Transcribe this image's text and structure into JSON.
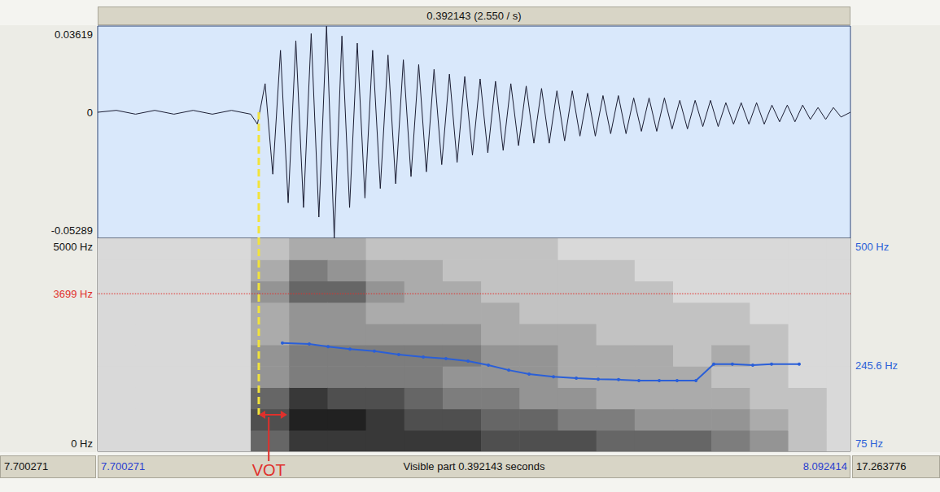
{
  "header": "0.392143 (2.550 / s)",
  "footer": {
    "left_outer": "7.700271",
    "left": "7.700271",
    "center": "Visible part 0.392143 seconds",
    "right": "8.092414",
    "right_outer": "17.263776"
  },
  "chart_data": [
    {
      "type": "line",
      "xlim": [
        7.700271,
        8.092414
      ],
      "ylim": [
        -0.05289,
        0.03619
      ],
      "yticks": [
        -0.05289,
        0,
        0.03619
      ],
      "grid": false,
      "color": "#1b1d33",
      "x": [
        7.700271,
        7.71,
        7.72,
        7.73,
        7.74,
        7.75,
        7.76,
        7.77,
        7.78,
        7.7835,
        7.7875,
        7.7915,
        7.7955,
        7.7995,
        7.8035,
        7.8075,
        7.8115,
        7.8155,
        7.8195,
        7.8235,
        7.8275,
        7.8315,
        7.8355,
        7.8395,
        7.8435,
        7.8475,
        7.8515,
        7.8555,
        7.8595,
        7.8635,
        7.8675,
        7.8715,
        7.8755,
        7.8795,
        7.8835,
        7.8875,
        7.8915,
        7.8955,
        7.8995,
        7.9035,
        7.9075,
        7.9115,
        7.9155,
        7.9195,
        7.9235,
        7.9275,
        7.9315,
        7.9355,
        7.9395,
        7.9435,
        7.9475,
        7.9515,
        7.9555,
        7.9595,
        7.9635,
        7.9675,
        7.9715,
        7.9755,
        7.9795,
        7.9835,
        7.9875,
        7.9915,
        7.9955,
        7.9995,
        8.0035,
        8.0075,
        8.0115,
        8.0155,
        8.0195,
        8.0235,
        8.0275,
        8.0315,
        8.0355,
        8.0395,
        8.0435,
        8.0475,
        8.0515,
        8.0555,
        8.0595,
        8.0635,
        8.0675,
        8.0715,
        8.0755,
        8.0795,
        8.0835,
        8.0875,
        8.0924
      ],
      "values": [
        0,
        0.0008,
        -0.0008,
        0.0008,
        -0.0008,
        0.0008,
        -0.0008,
        0.0008,
        -0.0008,
        -0.005,
        0.012,
        -0.026,
        0.026,
        -0.038,
        0.03,
        -0.04,
        0.033,
        -0.044,
        0.0361,
        -0.0528,
        0.032,
        -0.04,
        0.029,
        -0.036,
        0.026,
        -0.032,
        0.024,
        -0.03,
        0.022,
        -0.027,
        0.02,
        -0.025,
        0.018,
        -0.022,
        0.016,
        -0.021,
        0.015,
        -0.018,
        0.014,
        -0.017,
        0.013,
        -0.016,
        0.012,
        -0.014,
        0.011,
        -0.013,
        0.01,
        -0.013,
        0.009,
        -0.012,
        0.009,
        -0.01,
        0.008,
        -0.01,
        0.007,
        -0.009,
        0.007,
        -0.009,
        0.006,
        -0.008,
        0.006,
        -0.008,
        0.006,
        -0.007,
        0.005,
        -0.007,
        0.005,
        -0.006,
        0.005,
        -0.006,
        0.004,
        -0.005,
        0.004,
        -0.005,
        0.004,
        -0.005,
        0.003,
        -0.004,
        0.003,
        -0.004,
        0.003,
        -0.003,
        0.002,
        -0.003,
        0.002,
        -0.002,
        0
      ]
    },
    {
      "type": "heatmap",
      "xlim": [
        7.700271,
        8.092414
      ],
      "ylim": [
        0,
        5000
      ],
      "yticks": [
        {
          "value": 0,
          "label": "0 Hz"
        },
        {
          "value": 5000,
          "label": "5000 Hz"
        }
      ],
      "y2lim": [
        75,
        500
      ],
      "y2ticks": [
        {
          "value": 75,
          "label": "75 Hz"
        },
        {
          "value": 245.6,
          "label": "245.6 Hz"
        },
        {
          "value": 500,
          "label": "500 Hz"
        }
      ],
      "grid": false,
      "time_edges": [
        7.700271,
        7.72,
        7.74,
        7.76,
        7.78,
        7.8,
        7.82,
        7.84,
        7.86,
        7.88,
        7.9,
        7.92,
        7.94,
        7.96,
        7.98,
        8.0,
        8.02,
        8.04,
        8.06,
        8.08,
        8.092414
      ],
      "freq_edges": [
        0,
        500,
        1000,
        1500,
        2000,
        2500,
        3000,
        3500,
        4000,
        4500,
        5000
      ],
      "intensity_range": [
        0,
        10
      ],
      "intensity": [
        [
          1,
          1,
          1,
          1,
          1,
          1,
          1,
          1,
          1,
          1
        ],
        [
          1,
          1,
          1,
          1,
          1,
          1,
          1,
          1,
          1,
          1
        ],
        [
          1,
          1,
          1,
          1,
          1,
          1,
          1,
          1,
          1,
          1
        ],
        [
          1,
          1,
          1,
          1,
          1,
          1,
          1,
          1,
          1,
          1
        ],
        [
          6,
          7,
          6,
          4,
          4,
          3,
          3,
          4,
          3,
          2
        ],
        [
          8,
          9,
          8,
          5,
          5,
          4,
          4,
          6,
          5,
          3
        ],
        [
          8,
          9,
          7,
          5,
          5,
          4,
          4,
          6,
          4,
          3
        ],
        [
          8,
          8,
          7,
          5,
          5,
          4,
          3,
          4,
          3,
          2
        ],
        [
          8,
          7,
          6,
          5,
          5,
          4,
          3,
          3,
          3,
          2
        ],
        [
          8,
          7,
          5,
          4,
          5,
          4,
          3,
          3,
          2,
          2
        ],
        [
          7,
          6,
          5,
          4,
          4,
          3,
          3,
          2,
          2,
          2
        ],
        [
          7,
          6,
          4,
          4,
          4,
          3,
          2,
          2,
          2,
          2
        ],
        [
          7,
          5,
          4,
          3,
          3,
          3,
          2,
          2,
          2,
          1
        ],
        [
          6,
          5,
          3,
          3,
          3,
          2,
          2,
          2,
          2,
          1
        ],
        [
          6,
          4,
          3,
          3,
          3,
          2,
          2,
          2,
          1,
          1
        ],
        [
          6,
          4,
          3,
          3,
          2,
          2,
          2,
          1,
          1,
          1
        ],
        [
          5,
          4,
          3,
          2,
          3,
          2,
          2,
          1,
          1,
          1
        ],
        [
          4,
          3,
          2,
          2,
          2,
          2,
          1,
          1,
          1,
          1
        ],
        [
          2,
          2,
          2,
          1,
          1,
          1,
          1,
          1,
          1,
          1
        ],
        [
          1,
          1,
          1,
          1,
          1,
          1,
          1,
          1,
          1,
          1
        ]
      ],
      "series": [
        {
          "type": "line",
          "axis": "y2",
          "color": "#2a5fd8",
          "marker": "circle",
          "x": [
            7.7965,
            7.8105,
            7.8203,
            7.8317,
            7.8444,
            7.8571,
            7.8699,
            7.8817,
            7.8932,
            7.9038,
            7.9144,
            7.925,
            7.9377,
            7.9496,
            7.961,
            7.9716,
            7.9822,
            7.9928,
            8.0021,
            8.0119,
            8.0212,
            8.0309,
            8.0415,
            8.0513,
            8.0657
          ],
          "values": [
            291,
            289,
            284,
            279,
            275,
            268,
            263,
            260,
            255,
            247,
            237,
            229,
            224,
            221,
            219,
            218,
            216,
            216,
            216,
            216,
            249,
            249,
            247,
            249,
            249
          ]
        }
      ],
      "annotations": [
        {
          "type": "hline",
          "value": 3699,
          "label": "3699 Hz",
          "color": "#e0302c",
          "line_style": "dotted"
        },
        {
          "type": "vline",
          "value": 7.7842,
          "color": "#f2e33a",
          "line_style": "dashed"
        },
        {
          "type": "interval",
          "values": [
            7.7842,
            7.799
          ],
          "label": "VOT",
          "color": "#e0302c"
        }
      ]
    }
  ]
}
